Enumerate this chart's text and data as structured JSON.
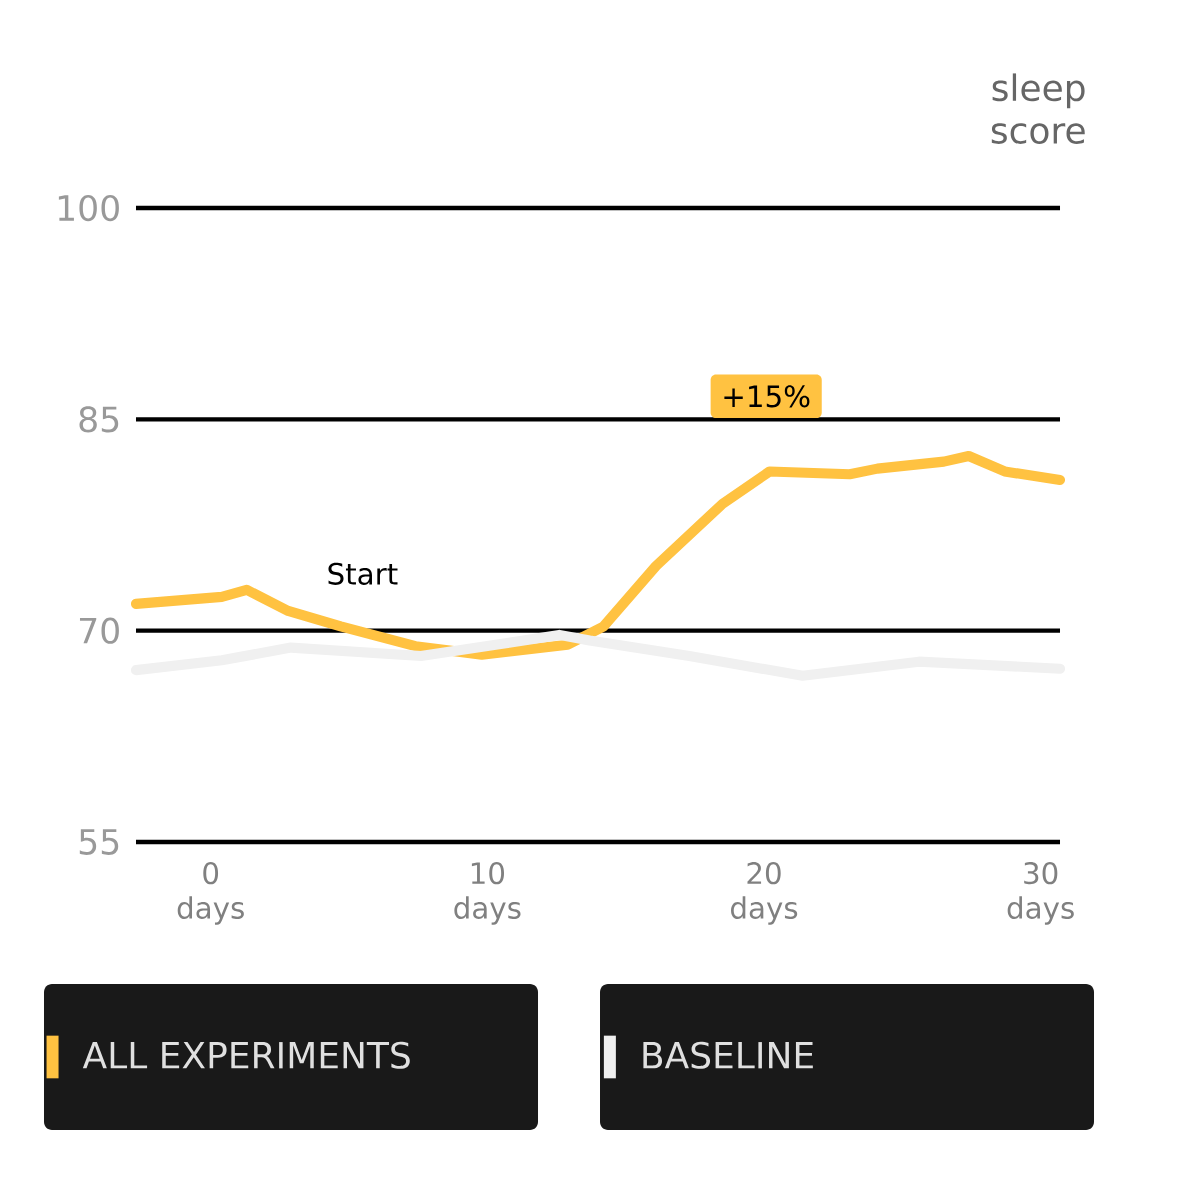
{
  "chart_data": {
    "type": "line",
    "ylabel": "sleep score",
    "x": [
      -2.7,
      0.4,
      1.3,
      2.8,
      4.7,
      7.4,
      9.8,
      12.9,
      14.2,
      16.1,
      18.5,
      20.2,
      23.1,
      24.1,
      26.5,
      27.4,
      28.7,
      30.7
    ],
    "series": [
      {
        "name": "ALL EXPERIMENTS",
        "color": "#ffc241",
        "values": [
          71.9,
          72.4,
          72.9,
          71.4,
          70.3,
          68.9,
          68.3,
          69.0,
          70.3,
          74.6,
          79.0,
          81.3,
          81.1,
          81.5,
          82.0,
          82.4,
          81.3,
          80.7
        ]
      },
      {
        "name": "BASELINE",
        "color": "#f0f0f0",
        "x": [
          -2.7,
          0.4,
          2.9,
          7.6,
          10.3,
          12.6,
          13.7,
          17.3,
          21.4,
          25.6,
          30.7
        ],
        "values": [
          67.2,
          67.9,
          68.8,
          68.2,
          69.0,
          69.7,
          69.3,
          68.2,
          66.8,
          67.8,
          67.3
        ]
      }
    ],
    "xlim": [
      -2.7,
      30.7
    ],
    "ylim": [
      55,
      100
    ],
    "xticks": [
      {
        "value": 0,
        "label": "0 days"
      },
      {
        "value": 10,
        "label": "10 days"
      },
      {
        "value": 20,
        "label": "20 days"
      },
      {
        "value": 30,
        "label": "30 days"
      }
    ],
    "yticks": [
      55,
      70,
      85,
      100
    ],
    "grid": "y",
    "legend": "bottom",
    "marker": "none",
    "line_style": "solid",
    "annotations": [
      "Start",
      "+15%"
    ]
  }
}
